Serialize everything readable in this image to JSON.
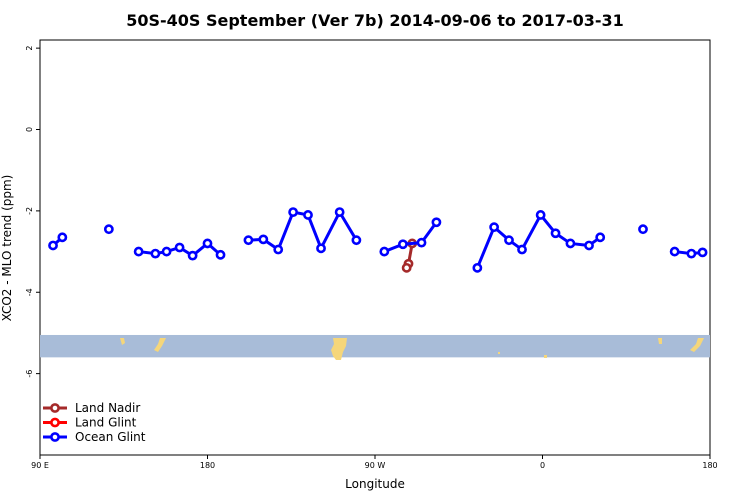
{
  "chart_data": {
    "type": "line",
    "title": "50S-40S September (Ver 7b)   2014-09-06 to 2017-03-31",
    "xlabel": "Longitude",
    "ylabel": "XCO2 - MLO trend (ppm)",
    "xlim": [
      90,
      450
    ],
    "ylim": [
      -8,
      2.2
    ],
    "x_ticks": [
      {
        "value": 90,
        "label": "90 E"
      },
      {
        "value": 180,
        "label": "180"
      },
      {
        "value": 270,
        "label": "90 W"
      },
      {
        "value": 360,
        "label": "0"
      },
      {
        "value": 450,
        "label": "180"
      }
    ],
    "y_ticks": [
      {
        "value": 2,
        "label": "2"
      },
      {
        "value": 0,
        "label": "0"
      },
      {
        "value": -2,
        "label": "-2"
      },
      {
        "value": -4,
        "label": "-4"
      },
      {
        "value": -6,
        "label": "-6"
      }
    ],
    "map_strip": {
      "y_range": [
        -5.6,
        -5.05
      ],
      "ocean_color": "#a8bcd8",
      "land_color": "#f5d67a"
    },
    "series": [
      {
        "name": "Land Nadir",
        "color": "#a52a2a",
        "segments": [
          [
            [
              290,
              -2.8
            ],
            [
              288,
              -3.3
            ],
            [
              287,
              -3.4
            ]
          ]
        ]
      },
      {
        "name": "Land Glint",
        "color": "#ff0000",
        "segments": []
      },
      {
        "name": "Ocean Glint",
        "color": "#0000ff",
        "segments": [
          [
            [
              97,
              -2.85
            ],
            [
              102,
              -2.65
            ]
          ],
          [
            [
              127,
              -2.45
            ]
          ],
          [
            [
              143,
              -3.0
            ],
            [
              152,
              -3.05
            ],
            [
              158,
              -3.0
            ],
            [
              165,
              -2.9
            ],
            [
              172,
              -3.1
            ],
            [
              180,
              -2.8
            ],
            [
              187,
              -3.08
            ]
          ],
          [
            [
              202,
              -2.72
            ],
            [
              210,
              -2.7
            ],
            [
              218,
              -2.95
            ],
            [
              226,
              -2.03
            ],
            [
              234,
              -2.1
            ],
            [
              241,
              -2.92
            ],
            [
              251,
              -2.03
            ],
            [
              260,
              -2.72
            ]
          ],
          [
            [
              275,
              -3.0
            ],
            [
              285,
              -2.82
            ],
            [
              295,
              -2.78
            ],
            [
              303,
              -2.28
            ]
          ],
          [
            [
              325,
              -3.4
            ],
            [
              334,
              -2.4
            ],
            [
              342,
              -2.72
            ],
            [
              349,
              -2.95
            ],
            [
              359,
              -2.1
            ],
            [
              367,
              -2.55
            ],
            [
              375,
              -2.8
            ],
            [
              385,
              -2.85
            ],
            [
              391,
              -2.65
            ]
          ],
          [
            [
              414,
              -2.45
            ]
          ],
          [
            [
              431,
              -3.0
            ],
            [
              440,
              -3.05
            ],
            [
              446,
              -3.02
            ]
          ]
        ]
      }
    ],
    "legend": {
      "position": "bottom-left"
    }
  }
}
